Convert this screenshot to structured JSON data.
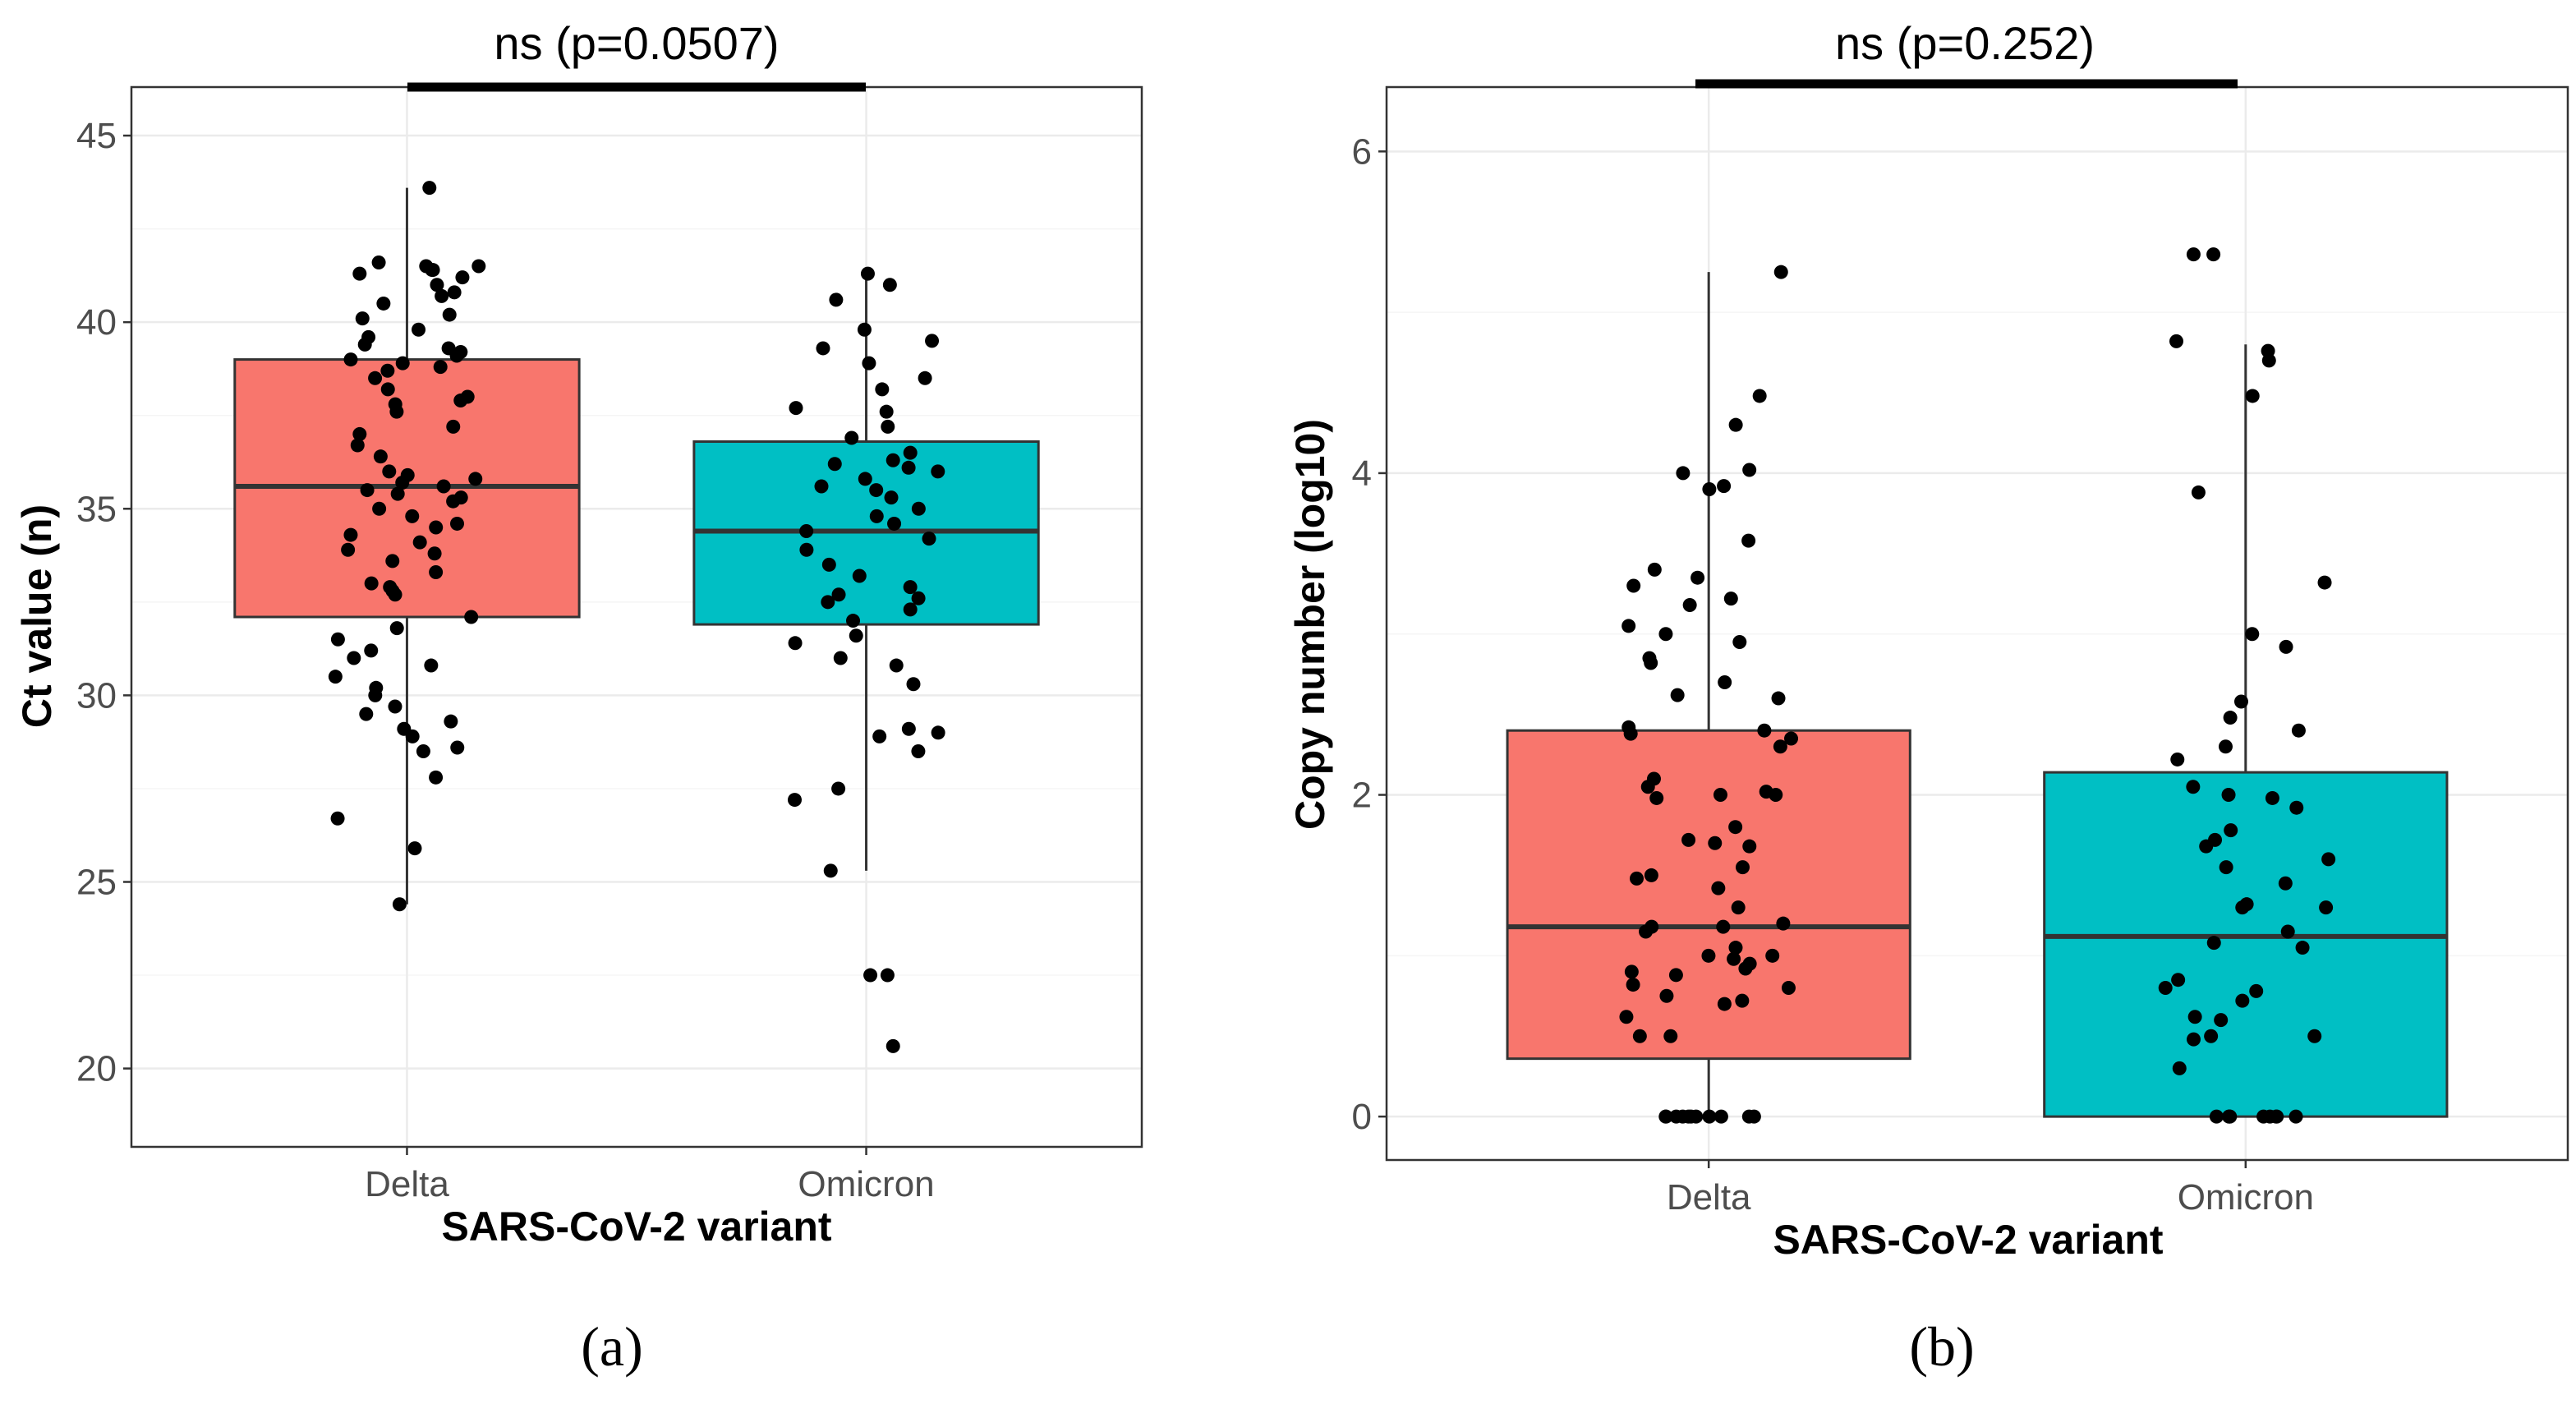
{
  "colors": {
    "delta_fill": "#F8766D",
    "omicron_fill": "#00BFC4",
    "point": "#000000",
    "grid_major": "#EBEBEB",
    "grid_minor": "#F5F5F5",
    "panel_border": "#333333"
  },
  "chart_data": [
    {
      "type": "box",
      "panel_label": "(a)",
      "title": "",
      "xlabel": "SARS-CoV-2 variant",
      "ylabel": "Ct value (n)",
      "ylim": [
        17.9,
        46.3
      ],
      "yticks": [
        20,
        25,
        30,
        35,
        40,
        45
      ],
      "categories": [
        "Delta",
        "Omicron"
      ],
      "significance": {
        "label": "ns (p=0.0507)",
        "between": [
          "Delta",
          "Omicron"
        ]
      },
      "boxes": [
        {
          "category": "Delta",
          "q1": 32.1,
          "median": 35.6,
          "q3": 39.0,
          "whisker_low": 24.4,
          "whisker_high": 43.6
        },
        {
          "category": "Omicron",
          "q1": 31.9,
          "median": 34.4,
          "q3": 36.8,
          "whisker_low": 25.3,
          "whisker_high": 41.3
        }
      ],
      "points": [
        {
          "category": "Delta",
          "values": [
            43.6,
            41.6,
            41.5,
            41.5,
            41.4,
            41.4,
            41.3,
            41.2,
            41.0,
            40.8,
            40.7,
            40.5,
            40.2,
            40.1,
            39.8,
            39.6,
            39.4,
            39.3,
            39.2,
            39.1,
            39.0,
            38.9,
            38.8,
            38.7,
            38.5,
            38.2,
            38.0,
            37.9,
            37.8,
            37.6,
            37.2,
            37.0,
            36.7,
            36.4,
            36.0,
            35.9,
            35.8,
            35.7,
            35.6,
            35.5,
            35.4,
            35.3,
            35.2,
            35.0,
            34.8,
            34.6,
            34.5,
            34.3,
            34.1,
            33.9,
            33.8,
            33.6,
            33.3,
            33.0,
            32.9,
            32.8,
            32.7,
            32.1,
            31.8,
            31.5,
            31.2,
            31.0,
            30.8,
            30.5,
            30.2,
            30.0,
            29.7,
            29.5,
            29.3,
            29.1,
            28.9,
            28.6,
            28.5,
            27.8,
            26.7,
            25.9,
            24.4
          ]
        },
        {
          "category": "Omicron",
          "values": [
            41.3,
            41.0,
            40.6,
            39.8,
            39.5,
            39.3,
            38.9,
            38.5,
            38.2,
            37.7,
            37.6,
            37.2,
            36.9,
            36.5,
            36.3,
            36.2,
            36.1,
            36.0,
            35.8,
            35.6,
            35.5,
            35.3,
            35.0,
            34.8,
            34.6,
            34.4,
            34.2,
            33.9,
            33.5,
            33.2,
            32.9,
            32.7,
            32.6,
            32.5,
            32.3,
            32.0,
            31.6,
            31.4,
            31.0,
            30.8,
            30.3,
            29.1,
            29.0,
            28.9,
            28.5,
            27.5,
            27.2,
            25.3,
            22.5,
            22.5,
            20.6
          ]
        }
      ]
    },
    {
      "type": "box",
      "panel_label": "(b)",
      "title": "",
      "xlabel": "SARS-CoV-2 variant",
      "ylabel": "Copy number (log10)",
      "ylim": [
        -0.27,
        6.4
      ],
      "yticks": [
        0,
        2,
        4,
        6
      ],
      "categories": [
        "Delta",
        "Omicron"
      ],
      "significance": {
        "label": "ns (p=0.252)",
        "between": [
          "Delta",
          "Omicron"
        ]
      },
      "boxes": [
        {
          "category": "Delta",
          "q1": 0.36,
          "median": 1.18,
          "q3": 2.4,
          "whisker_low": 0.0,
          "whisker_high": 5.25
        },
        {
          "category": "Omicron",
          "q1": 0.0,
          "median": 1.12,
          "q3": 2.14,
          "whisker_low": 0.0,
          "whisker_high": 4.8
        }
      ],
      "points": [
        {
          "category": "Delta",
          "values": [
            5.25,
            4.48,
            4.3,
            4.02,
            4.0,
            3.92,
            3.9,
            3.58,
            3.4,
            3.35,
            3.3,
            3.22,
            3.18,
            3.05,
            3.0,
            2.95,
            2.85,
            2.82,
            2.7,
            2.62,
            2.6,
            2.42,
            2.4,
            2.38,
            2.35,
            2.3,
            2.1,
            2.05,
            2.02,
            2.0,
            2.0,
            1.98,
            1.8,
            1.72,
            1.7,
            1.68,
            1.55,
            1.5,
            1.48,
            1.42,
            1.3,
            1.2,
            1.18,
            1.18,
            1.15,
            1.05,
            1.0,
            1.0,
            0.98,
            0.95,
            0.92,
            0.9,
            0.88,
            0.82,
            0.8,
            0.75,
            0.72,
            0.7,
            0.62,
            0.5,
            0.5,
            0.0,
            0.0,
            0.0,
            0.0,
            0.0,
            0.0,
            0.0,
            0.0,
            0.0,
            0.0,
            0.0
          ]
        },
        {
          "category": "Omicron",
          "values": [
            5.36,
            5.36,
            4.82,
            4.76,
            4.7,
            4.48,
            3.88,
            3.32,
            3.0,
            2.92,
            2.58,
            2.48,
            2.4,
            2.3,
            2.22,
            2.05,
            2.0,
            1.98,
            1.92,
            1.78,
            1.72,
            1.68,
            1.6,
            1.55,
            1.45,
            1.32,
            1.3,
            1.3,
            1.15,
            1.08,
            1.05,
            0.85,
            0.8,
            0.78,
            0.72,
            0.62,
            0.6,
            0.5,
            0.5,
            0.48,
            0.3,
            0.0,
            0.0,
            0.0,
            0.0,
            0.0,
            0.0,
            0.0,
            0.0,
            0.0
          ]
        }
      ]
    }
  ]
}
